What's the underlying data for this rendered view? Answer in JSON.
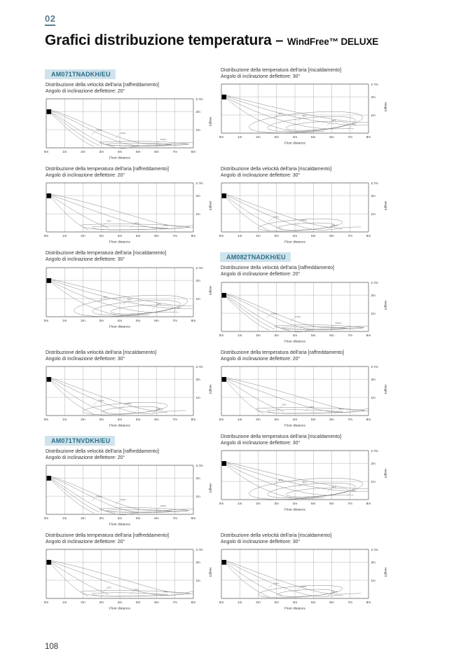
{
  "page": {
    "chapter": "02",
    "title": "Grafici distribuzione temperatura",
    "dash": "–",
    "brand": "WindFree™ DELUXE",
    "page_number": "108"
  },
  "colors": {
    "accent": "#5a7d8e",
    "chip_bg": "#cfe3ed",
    "chip_text": "#2e6f85",
    "grid_line": "#999999",
    "plot_border": "#555555",
    "curve": "#777777",
    "unit_marker": "#000000"
  },
  "axis": {
    "x_ticks": [
      "0m",
      "1m",
      "2m",
      "3m",
      "4m",
      "5m",
      "6m",
      "7m",
      "8m"
    ],
    "x_label": "Floor distance",
    "y_ticks": [
      "2.7m",
      "2m",
      "1m"
    ],
    "y_label": "Height"
  },
  "curve_labels": {
    "coolV": [
      "1.5m/s",
      "1.0m/s",
      "0.5m/s"
    ],
    "coolT": [
      "20°C",
      "22°C",
      "24°C"
    ],
    "heatT": [
      "40°C",
      "35°C",
      "30°C",
      "28°C"
    ],
    "heatV": [
      "1.5m/s",
      "1.0m/s",
      "0.5m/s"
    ]
  },
  "chart_data": {
    "type": "area",
    "note_axes": {
      "x_range_m": [
        0,
        8
      ],
      "y_range_m": [
        0,
        2.7
      ],
      "grid": true
    },
    "x_label": "Floor distance",
    "y_label": "Height"
  },
  "cells": [
    {
      "model": "AM071TNADKH/EU",
      "line1": "Distribuzione della velocità dell'aria [raffreddamento]",
      "line2": "Angolo di inclinazione deflettore: 20°",
      "variant": "coolV"
    },
    {
      "model": "",
      "line1": "Distribuzione della temperatura dell'aria [riscaldamento]",
      "line2": "Angolo di inclinazione deflettore: 30°",
      "variant": "heatT"
    },
    {
      "model": "",
      "line1": "Distribuzione della temperatura dell'aria [raffreddamento]",
      "line2": "Angolo di inclinazione deflettore: 20°",
      "variant": "coolT"
    },
    {
      "model": "",
      "line1": "Distribuzione della velocità dell'aria [riscaldamento]",
      "line2": "Angolo di inclinazione deflettore: 30°",
      "variant": "heatV"
    },
    {
      "model": "",
      "line1": "Distribuzione della temperatura dell'aria [riscaldamento]",
      "line2": "Angolo di inclinazione deflettore: 30°",
      "variant": "heatT"
    },
    {
      "model": "AM082TNADKH/EU",
      "line1": "Distribuzione della velocità dell'aria [raffreddamento]",
      "line2": "Angolo di inclinazione deflettore: 20°",
      "variant": "coolV"
    },
    {
      "model": "",
      "line1": "Distribuzione della velocità dell'aria [riscaldamento]",
      "line2": "Angolo di inclinazione deflettore: 30°",
      "variant": "heatV"
    },
    {
      "model": "",
      "line1": "Distribuzione della temperatura dell'aria [raffreddamento]",
      "line2": "Angolo di inclinazione deflettore: 20°",
      "variant": "coolT"
    },
    {
      "model": "AM071TNVDKH/EU",
      "line1": "Distribuzione della velocità dell'aria [raffreddamento]",
      "line2": "Angolo di inclinazione deflettore: 20°",
      "variant": "coolV"
    },
    {
      "model": "",
      "line1": "Distribuzione della temperatura dell'aria [riscaldamento]",
      "line2": "Angolo di inclinazione deflettore: 30°",
      "variant": "heatT"
    },
    {
      "model": "",
      "line1": "Distribuzione della temperatura dell'aria [raffreddamento]",
      "line2": "Angolo di inclinazione deflettore: 20°",
      "variant": "coolT"
    },
    {
      "model": "",
      "line1": "Distribuzione della velocità dell'aria [riscaldamento]",
      "line2": "Angolo di inclinazione deflettore: 30°",
      "variant": "heatV"
    }
  ]
}
